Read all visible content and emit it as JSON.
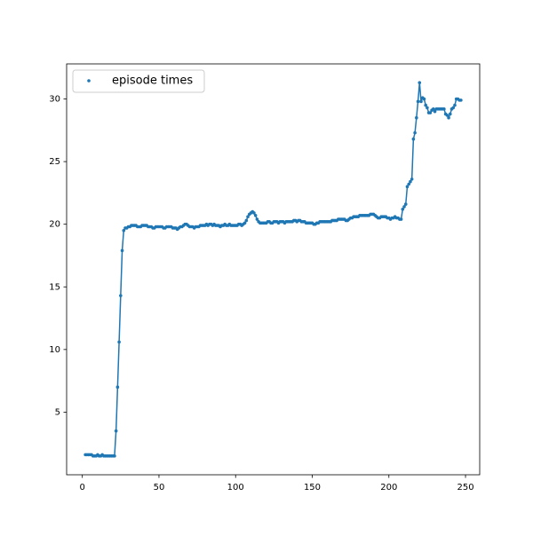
{
  "chart_data": {
    "type": "line",
    "markers": true,
    "legend": "upper left",
    "series": [
      {
        "name": "episode times",
        "color": "#1f77b4",
        "x": [
          2,
          3,
          4,
          5,
          6,
          7,
          8,
          9,
          10,
          11,
          12,
          13,
          14,
          15,
          16,
          17,
          18,
          19,
          20,
          21,
          22,
          23,
          24,
          25,
          26,
          27,
          28,
          29,
          30,
          31,
          32,
          33,
          34,
          35,
          36,
          37,
          38,
          39,
          40,
          41,
          42,
          43,
          44,
          45,
          46,
          47,
          48,
          49,
          50,
          51,
          52,
          53,
          54,
          55,
          56,
          57,
          58,
          59,
          60,
          61,
          62,
          63,
          64,
          65,
          66,
          67,
          68,
          69,
          70,
          71,
          72,
          73,
          74,
          75,
          76,
          77,
          78,
          79,
          80,
          81,
          82,
          83,
          84,
          85,
          86,
          87,
          88,
          89,
          90,
          91,
          92,
          93,
          94,
          95,
          96,
          97,
          98,
          99,
          100,
          101,
          102,
          103,
          104,
          105,
          106,
          107,
          108,
          109,
          110,
          111,
          112,
          113,
          114,
          115,
          116,
          117,
          118,
          119,
          120,
          121,
          122,
          123,
          124,
          125,
          126,
          127,
          128,
          129,
          130,
          131,
          132,
          133,
          134,
          135,
          136,
          137,
          138,
          139,
          140,
          141,
          142,
          143,
          144,
          145,
          146,
          147,
          148,
          149,
          150,
          151,
          152,
          153,
          154,
          155,
          156,
          157,
          158,
          159,
          160,
          161,
          162,
          163,
          164,
          165,
          166,
          167,
          168,
          169,
          170,
          171,
          172,
          173,
          174,
          175,
          176,
          177,
          178,
          179,
          180,
          181,
          182,
          183,
          184,
          185,
          186,
          187,
          188,
          189,
          190,
          191,
          192,
          193,
          194,
          195,
          196,
          197,
          198,
          199,
          200,
          201,
          202,
          203,
          204,
          205,
          206,
          207,
          208,
          209,
          210,
          211,
          212,
          213,
          214,
          215,
          216,
          217,
          218,
          219,
          220,
          221,
          222,
          223,
          224,
          225,
          226,
          227,
          228,
          229,
          230,
          231,
          232,
          233,
          234,
          235,
          236,
          237,
          238,
          239,
          240,
          241,
          242,
          243,
          244,
          245,
          246,
          247
        ],
        "values": [
          1.6,
          1.6,
          1.6,
          1.6,
          1.6,
          1.5,
          1.5,
          1.5,
          1.6,
          1.5,
          1.5,
          1.6,
          1.5,
          1.5,
          1.5,
          1.5,
          1.5,
          1.5,
          1.5,
          1.5,
          3.5,
          7.0,
          10.6,
          14.3,
          17.9,
          19.5,
          19.7,
          19.7,
          19.8,
          19.8,
          19.9,
          19.9,
          19.9,
          19.9,
          19.8,
          19.8,
          19.8,
          19.9,
          19.9,
          19.9,
          19.9,
          19.8,
          19.8,
          19.8,
          19.7,
          19.7,
          19.8,
          19.8,
          19.8,
          19.8,
          19.8,
          19.7,
          19.7,
          19.8,
          19.8,
          19.8,
          19.8,
          19.7,
          19.7,
          19.7,
          19.6,
          19.7,
          19.8,
          19.8,
          19.9,
          20.0,
          20.0,
          19.9,
          19.8,
          19.8,
          19.8,
          19.7,
          19.8,
          19.8,
          19.8,
          19.9,
          19.9,
          19.9,
          19.9,
          20.0,
          19.9,
          20.0,
          20.0,
          19.9,
          20.0,
          19.9,
          19.9,
          19.9,
          19.8,
          19.9,
          19.9,
          20.0,
          19.9,
          19.9,
          20.0,
          19.9,
          19.9,
          19.9,
          19.9,
          19.9,
          20.0,
          20.0,
          19.9,
          20.0,
          20.1,
          20.3,
          20.6,
          20.8,
          20.9,
          21.0,
          20.9,
          20.7,
          20.4,
          20.2,
          20.1,
          20.1,
          20.1,
          20.1,
          20.1,
          20.2,
          20.2,
          20.1,
          20.1,
          20.2,
          20.2,
          20.2,
          20.1,
          20.2,
          20.2,
          20.2,
          20.1,
          20.2,
          20.2,
          20.2,
          20.2,
          20.2,
          20.3,
          20.3,
          20.2,
          20.3,
          20.3,
          20.2,
          20.2,
          20.2,
          20.1,
          20.1,
          20.1,
          20.1,
          20.1,
          20.0,
          20.0,
          20.1,
          20.1,
          20.2,
          20.2,
          20.2,
          20.2,
          20.2,
          20.2,
          20.2,
          20.2,
          20.3,
          20.3,
          20.3,
          20.3,
          20.4,
          20.4,
          20.4,
          20.4,
          20.4,
          20.3,
          20.3,
          20.4,
          20.5,
          20.5,
          20.6,
          20.6,
          20.6,
          20.6,
          20.7,
          20.7,
          20.7,
          20.7,
          20.7,
          20.7,
          20.7,
          20.8,
          20.8,
          20.8,
          20.7,
          20.6,
          20.5,
          20.5,
          20.6,
          20.6,
          20.6,
          20.6,
          20.5,
          20.5,
          20.4,
          20.5,
          20.5,
          20.6,
          20.5,
          20.5,
          20.4,
          20.4,
          21.2,
          21.4,
          21.6,
          23.0,
          23.2,
          23.4,
          23.6,
          26.8,
          27.3,
          28.5,
          29.8,
          31.3,
          29.8,
          30.1,
          30.0,
          29.5,
          29.3,
          28.9,
          28.9,
          29.1,
          29.2,
          29.0,
          29.2,
          29.2,
          29.2,
          29.2,
          29.2,
          29.2,
          28.8,
          28.7,
          28.5,
          28.8,
          29.2,
          29.3,
          29.5,
          30.0,
          30.0,
          29.9,
          29.9
        ]
      }
    ],
    "xlim": [
      -10.25,
      259.25
    ],
    "xticks": [
      0,
      50,
      100,
      150,
      200,
      250
    ],
    "ylim": [
      0.0,
      32.8
    ],
    "yticks": [
      5,
      10,
      15,
      20,
      25,
      30
    ]
  }
}
